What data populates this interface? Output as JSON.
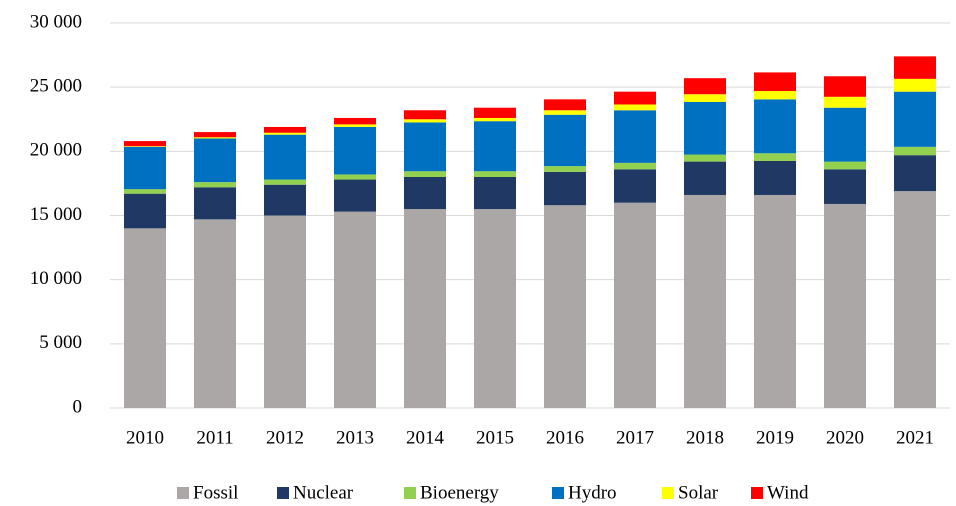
{
  "chart_data": {
    "type": "stacked_bar",
    "categories": [
      "2010",
      "2011",
      "2012",
      "2013",
      "2014",
      "2015",
      "2016",
      "2017",
      "2018",
      "2019",
      "2020",
      "2021"
    ],
    "series": [
      {
        "name": "Fossil",
        "color": "#aba7a6",
        "values": [
          14000,
          14700,
          15000,
          15300,
          15500,
          15500,
          15800,
          16000,
          16600,
          16600,
          15900,
          16900
        ]
      },
      {
        "name": "Nuclear",
        "color": "#1f3864",
        "values": [
          2700,
          2500,
          2400,
          2500,
          2500,
          2500,
          2600,
          2600,
          2600,
          2650,
          2700,
          2800
        ]
      },
      {
        "name": "Bioenergy",
        "color": "#92d050",
        "values": [
          350,
          400,
          400,
          400,
          450,
          450,
          450,
          500,
          550,
          600,
          600,
          650
        ]
      },
      {
        "name": "Hydro",
        "color": "#0070c0",
        "values": [
          3300,
          3400,
          3500,
          3700,
          3800,
          3900,
          4000,
          4100,
          4100,
          4200,
          4200,
          4300
        ]
      },
      {
        "name": "Solar",
        "color": "#ffff00",
        "values": [
          50,
          100,
          150,
          200,
          250,
          250,
          350,
          450,
          600,
          650,
          850,
          1000
        ]
      },
      {
        "name": "Wind",
        "color": "#ff0000",
        "values": [
          400,
          400,
          450,
          500,
          700,
          800,
          850,
          1000,
          1250,
          1450,
          1600,
          1750
        ]
      }
    ],
    "ylim": [
      0,
      30000
    ],
    "yticks": [
      0,
      {
        "value": 5000,
        "label": "5 000"
      },
      {
        "value": 10000,
        "label": "10 000"
      },
      {
        "value": 15000,
        "label": "15 000"
      },
      {
        "value": 20000,
        "label": "20 000"
      },
      {
        "value": 25000,
        "label": "25 000"
      },
      {
        "value": 30000,
        "label": "30 000"
      }
    ],
    "grid": true,
    "legend": "bottom"
  }
}
